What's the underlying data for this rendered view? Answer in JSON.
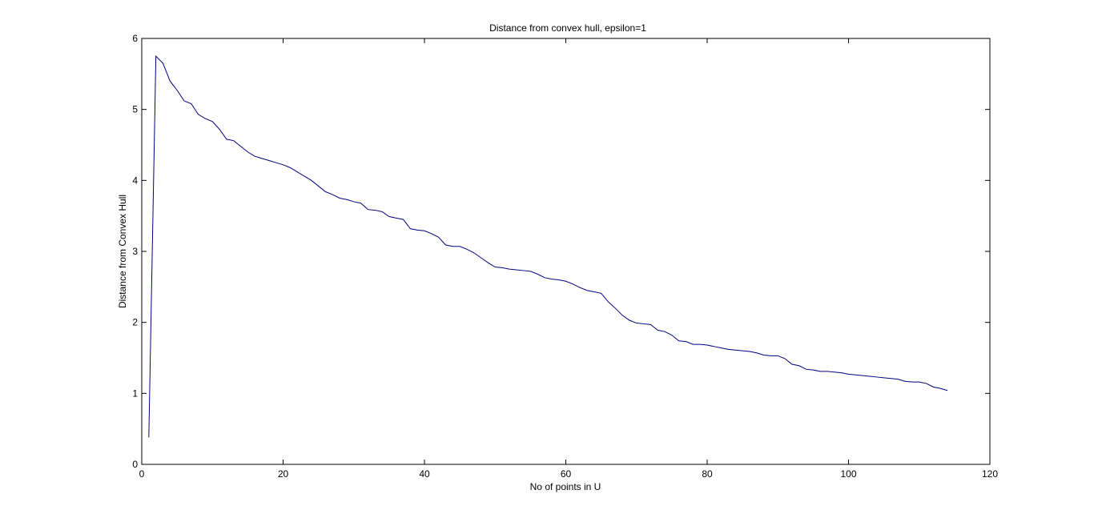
{
  "chart_data": {
    "type": "line",
    "title": "Distance from convex hull, epsilon=1",
    "xlabel": "No of points in U",
    "ylabel": "Distance from Convex Hull",
    "xlim": [
      0,
      120
    ],
    "ylim": [
      0,
      6
    ],
    "xticks": [
      0,
      20,
      40,
      60,
      80,
      100,
      120
    ],
    "yticks": [
      0,
      1,
      2,
      3,
      4,
      5,
      6
    ],
    "grid": false,
    "line_color": "#00007f",
    "series": [
      {
        "x": [
          1,
          2,
          3,
          4,
          5,
          6,
          7,
          8,
          9,
          10,
          11,
          12,
          13,
          14,
          15,
          16,
          17,
          18,
          19,
          20,
          21,
          22,
          23,
          24,
          25,
          26,
          27,
          28,
          29,
          30,
          31,
          32,
          33,
          34,
          35,
          36,
          37,
          38,
          39,
          40,
          41,
          42,
          43,
          44,
          45,
          46,
          47,
          48,
          49,
          50,
          51,
          52,
          53,
          54,
          55,
          56,
          57,
          58,
          59,
          60,
          61,
          62,
          63,
          64,
          65,
          66,
          67,
          68,
          69,
          70,
          71,
          72,
          73,
          74,
          75,
          76,
          77,
          78,
          79,
          80,
          81,
          82,
          83,
          84,
          85,
          86,
          87,
          88,
          89,
          90,
          91,
          92,
          93,
          94,
          95,
          96,
          97,
          98,
          99,
          100,
          101,
          102,
          103,
          104,
          105,
          106,
          107,
          108,
          109,
          110,
          111,
          112,
          113,
          114
        ],
        "values": [
          0.38,
          5.75,
          5.65,
          5.4,
          5.27,
          5.12,
          5.08,
          4.93,
          4.87,
          4.83,
          4.72,
          4.58,
          4.56,
          4.48,
          4.4,
          4.34,
          4.31,
          4.28,
          4.25,
          4.22,
          4.18,
          4.12,
          4.06,
          4.0,
          3.92,
          3.84,
          3.8,
          3.75,
          3.73,
          3.7,
          3.68,
          3.59,
          3.58,
          3.56,
          3.49,
          3.47,
          3.45,
          3.32,
          3.3,
          3.29,
          3.25,
          3.2,
          3.09,
          3.07,
          3.07,
          3.03,
          2.98,
          2.91,
          2.84,
          2.78,
          2.77,
          2.75,
          2.74,
          2.73,
          2.72,
          2.68,
          2.63,
          2.61,
          2.6,
          2.58,
          2.54,
          2.49,
          2.45,
          2.43,
          2.41,
          2.29,
          2.2,
          2.1,
          2.03,
          1.99,
          1.98,
          1.97,
          1.89,
          1.87,
          1.82,
          1.74,
          1.73,
          1.69,
          1.69,
          1.68,
          1.66,
          1.64,
          1.62,
          1.61,
          1.6,
          1.59,
          1.57,
          1.54,
          1.53,
          1.53,
          1.49,
          1.41,
          1.39,
          1.34,
          1.33,
          1.31,
          1.31,
          1.3,
          1.29,
          1.27,
          1.26,
          1.25,
          1.24,
          1.23,
          1.22,
          1.21,
          1.2,
          1.17,
          1.16,
          1.16,
          1.14,
          1.09,
          1.07,
          1.04
        ]
      }
    ]
  }
}
